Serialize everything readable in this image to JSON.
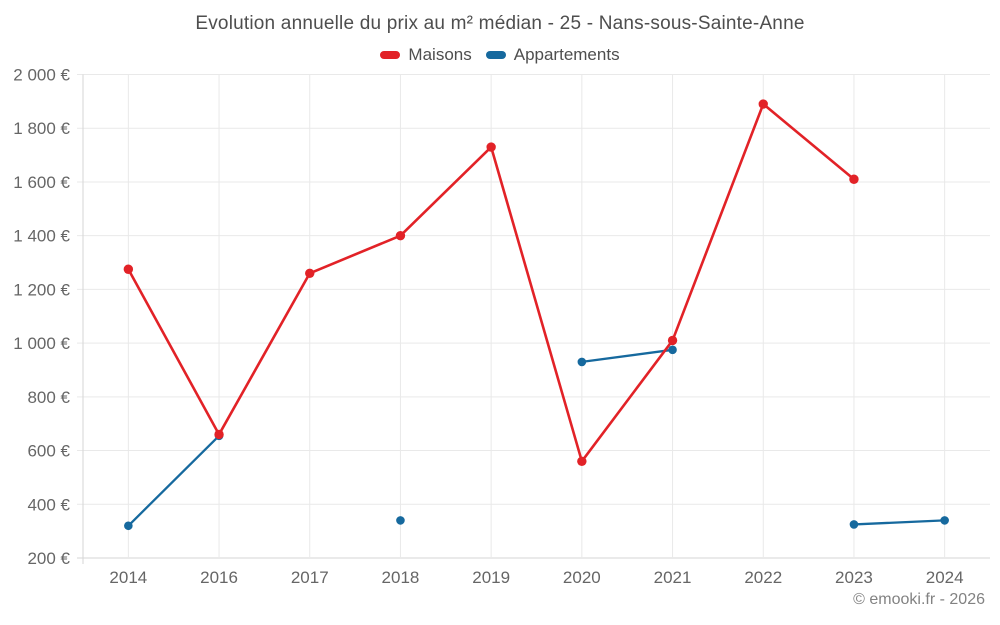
{
  "chart_data": {
    "type": "line",
    "title": "Evolution annuelle du prix au m² médian - 25 - Nans-sous-Sainte-Anne",
    "categories": [
      "2014",
      "2016",
      "2017",
      "2018",
      "2019",
      "2020",
      "2021",
      "2022",
      "2023",
      "2024"
    ],
    "series": [
      {
        "name": "Maisons",
        "color": "#e22227",
        "values": [
          1275,
          660,
          1260,
          1400,
          1730,
          560,
          1010,
          1890,
          1610,
          null
        ]
      },
      {
        "name": "Appartements",
        "color": "#16699e",
        "values": [
          320,
          655,
          null,
          340,
          null,
          930,
          975,
          null,
          325,
          340
        ]
      }
    ],
    "xlabel": "",
    "ylabel": "",
    "ylim": [
      200,
      2000
    ],
    "ytick_step": 200,
    "ytick_labels": [
      "200 €",
      "400 €",
      "600 €",
      "800 €",
      "1 000 €",
      "1 200 €",
      "1 400 €",
      "1 600 €",
      "1 800 €",
      "2 000 €"
    ],
    "grid": true,
    "legend_position": "top"
  },
  "footer": {
    "copyright": "© emooki.fr - 2026"
  }
}
